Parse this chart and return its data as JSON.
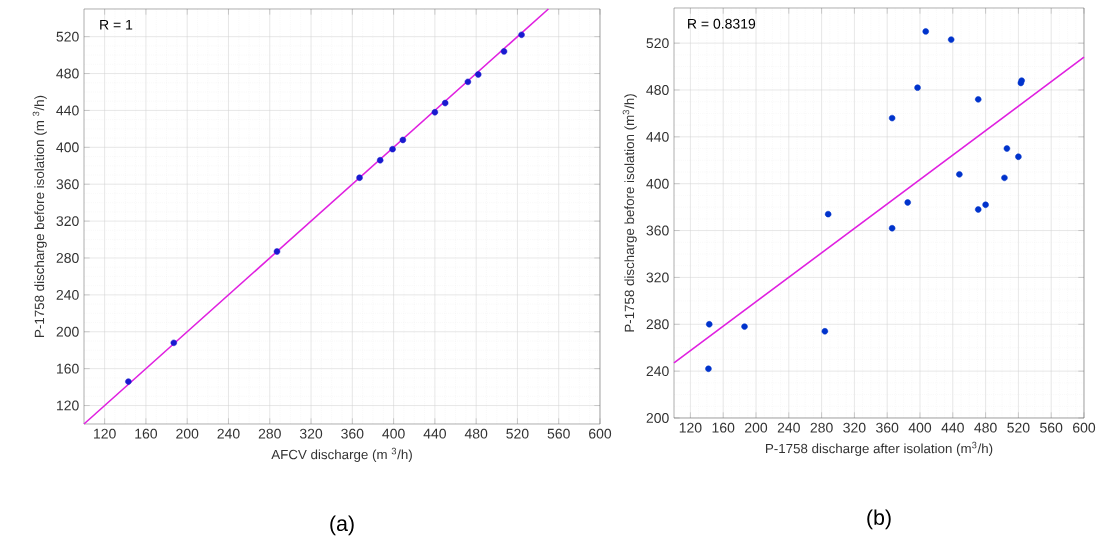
{
  "chart_data": [
    {
      "type": "scatter",
      "xlabel": "AFCV discharge (m $^{3}$/h)",
      "ylabel": "P-1758 discharge before isolation (m $^{3}$/h)",
      "annotations": [
        "R = 1",
        "(a)"
      ],
      "xlim": [
        100,
        600
      ],
      "ylim": [
        100,
        550
      ],
      "xticks": [
        120,
        160,
        200,
        240,
        280,
        320,
        360,
        400,
        440,
        480,
        520,
        560,
        600
      ],
      "yticks": [
        120,
        160,
        200,
        240,
        280,
        320,
        360,
        400,
        440,
        480,
        520
      ],
      "grid": true,
      "series": [
        {
          "marker": "circle",
          "color": "#1a1ad0",
          "x": [
            143,
            187,
            287,
            367,
            387,
            399,
            409,
            440,
            450,
            472,
            482,
            507,
            524
          ],
          "values": [
            146,
            188,
            287,
            367,
            386,
            398,
            408,
            438,
            448,
            471,
            479,
            504,
            522
          ]
        },
        {
          "type": "line",
          "marker": "none",
          "color": "#e020e0",
          "x": [
            100,
            550
          ],
          "values": [
            100,
            550
          ]
        }
      ]
    },
    {
      "type": "scatter",
      "xlabel": "P-1758 discharge after isolation (m$^{3}$/h)",
      "ylabel": "P-1758 discharge before isolation (m$^{3}$/h)",
      "annotations": [
        "R = 0.8319",
        "(b)"
      ],
      "xlim": [
        100,
        600
      ],
      "ylim": [
        200,
        550
      ],
      "xticks": [
        120,
        160,
        200,
        240,
        280,
        320,
        360,
        400,
        440,
        480,
        520,
        560,
        600
      ],
      "yticks": [
        200,
        240,
        280,
        320,
        360,
        400,
        440,
        480,
        520
      ],
      "grid": true,
      "series": [
        {
          "marker": "circle",
          "color": "#0033cc",
          "x": [
            407,
            438,
            397,
            471,
            524,
            523,
            366,
            506,
            520,
            448,
            503,
            385,
            480,
            471,
            288,
            366,
            143,
            142,
            186,
            284
          ],
          "values": [
            530,
            523,
            482,
            472,
            488,
            486,
            456,
            430,
            423,
            408,
            405,
            384,
            382,
            378,
            374,
            362,
            280,
            242,
            278,
            274
          ]
        },
        {
          "type": "line",
          "marker": "none",
          "color": "#e020e0",
          "x": [
            100,
            600
          ],
          "values": [
            247,
            508
          ]
        }
      ]
    }
  ]
}
